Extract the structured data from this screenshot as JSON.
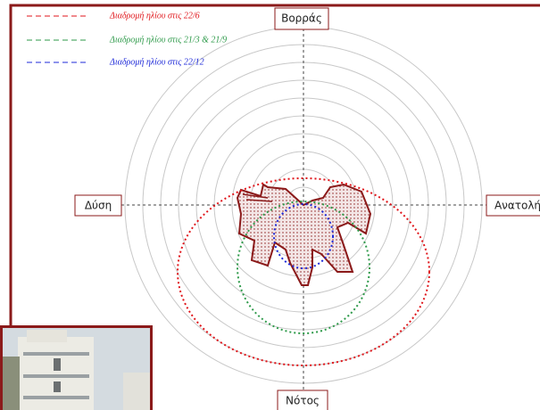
{
  "legend": [
    "Διαδρομή ηλίου στις 22/6",
    "Διαδρομή ηλίου στις 21/3 & 21/9",
    "Διαδρομή ηλίου στις 22/12"
  ],
  "directions": {
    "north": "Βορράς",
    "west": "Δύση",
    "east": "Ανατολή",
    "south": "Νότος"
  }
}
